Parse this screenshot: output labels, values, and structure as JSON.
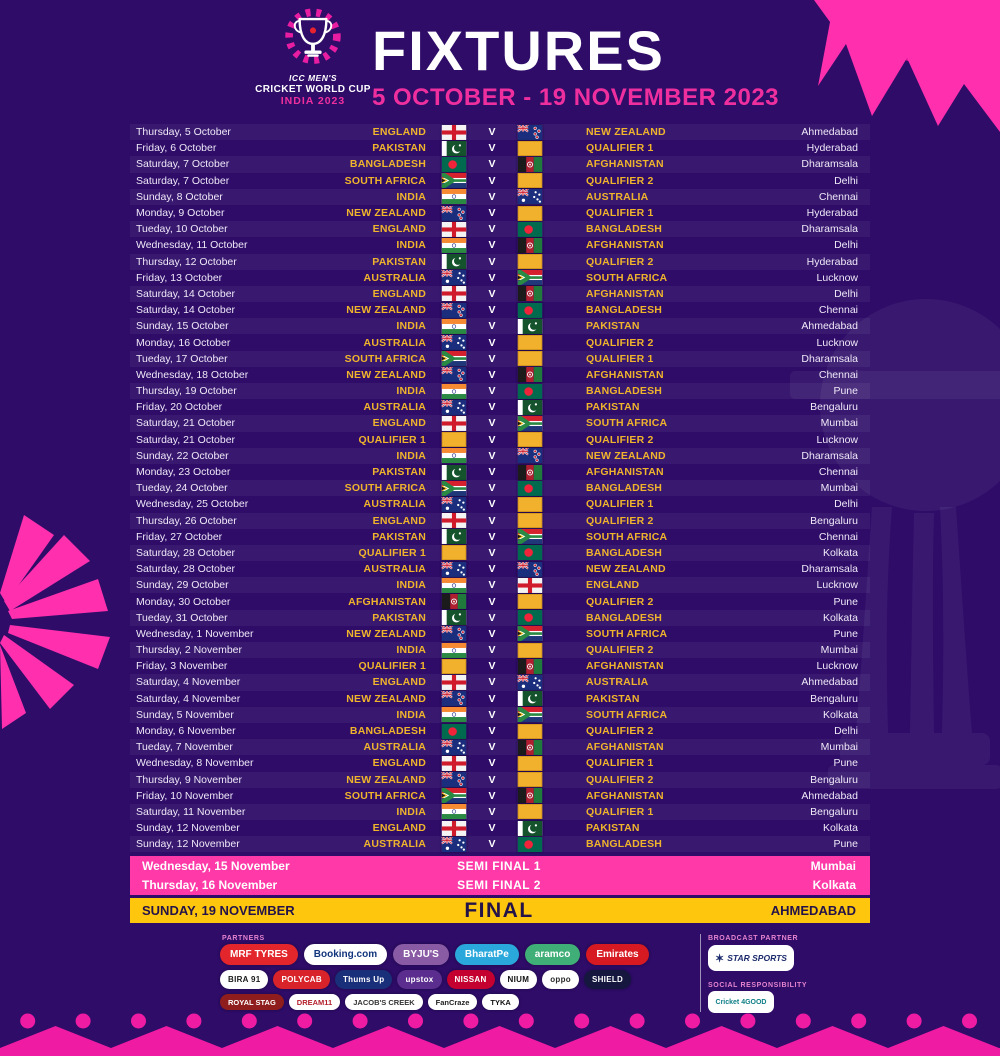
{
  "header": {
    "logo_line1": "ICC MEN'S",
    "logo_line2": "CRICKET WORLD CUP",
    "logo_line3": "INDIA 2023",
    "title": "FIXTURES",
    "subtitle": "5 OCTOBER - 19 NOVEMBER 2023"
  },
  "colors": {
    "background": "#2e0c68",
    "team_gold": "#f0b42c",
    "pink_accent": "#f02f9f",
    "semi_final_bg": "#ff3aa8",
    "final_bg": "#ffc60e",
    "final_text": "#241349"
  },
  "table": {
    "vs_label": "V"
  },
  "flag_map": {
    "ENGLAND": "england-flag",
    "NEW ZEALAND": "new-zealand-flag",
    "PAKISTAN": "pakistan-flag",
    "QUALIFIER 1": "qualifier-flag",
    "QUALIFIER 2": "qualifier-flag",
    "BANGLADESH": "bangladesh-flag",
    "AFGHANISTAN": "afghanistan-flag",
    "SOUTH AFRICA": "south-africa-flag",
    "INDIA": "india-flag",
    "AUSTRALIA": "australia-flag"
  },
  "fixtures": [
    {
      "date": "Thursday, 5 October",
      "team1": "ENGLAND",
      "team2": "NEW ZEALAND",
      "venue": "Ahmedabad"
    },
    {
      "date": "Friday, 6 October",
      "team1": "PAKISTAN",
      "team2": "QUALIFIER 1",
      "venue": "Hyderabad"
    },
    {
      "date": "Saturday, 7 October",
      "team1": "BANGLADESH",
      "team2": "AFGHANISTAN",
      "venue": "Dharamsala"
    },
    {
      "date": "Saturday, 7 October",
      "team1": "SOUTH AFRICA",
      "team2": "QUALIFIER 2",
      "venue": "Delhi"
    },
    {
      "date": "Sunday, 8 October",
      "team1": "INDIA",
      "team2": "AUSTRALIA",
      "venue": "Chennai"
    },
    {
      "date": "Monday, 9 October",
      "team1": "NEW ZEALAND",
      "team2": "QUALIFIER 1",
      "venue": "Hyderabad"
    },
    {
      "date": "Tueday, 10 October",
      "team1": "ENGLAND",
      "team2": "BANGLADESH",
      "venue": "Dharamsala"
    },
    {
      "date": "Wednesday, 11 October",
      "team1": "INDIA",
      "team2": "AFGHANISTAN",
      "venue": "Delhi"
    },
    {
      "date": "Thursday, 12 October",
      "team1": "PAKISTAN",
      "team2": "QUALIFIER 2",
      "venue": "Hyderabad"
    },
    {
      "date": "Friday, 13 October",
      "team1": "AUSTRALIA",
      "team2": "SOUTH AFRICA",
      "venue": "Lucknow"
    },
    {
      "date": "Saturday, 14 October",
      "team1": "ENGLAND",
      "team2": "AFGHANISTAN",
      "venue": "Delhi"
    },
    {
      "date": "Saturday, 14 October",
      "team1": "NEW ZEALAND",
      "team2": "BANGLADESH",
      "venue": "Chennai"
    },
    {
      "date": "Sunday, 15 October",
      "team1": "INDIA",
      "team2": "PAKISTAN",
      "venue": "Ahmedabad"
    },
    {
      "date": "Monday, 16 October",
      "team1": "AUSTRALIA",
      "team2": "QUALIFIER 2",
      "venue": "Lucknow"
    },
    {
      "date": "Tueday, 17 October",
      "team1": "SOUTH AFRICA",
      "team2": "QUALIFIER 1",
      "venue": "Dharamsala"
    },
    {
      "date": "Wednesday, 18 October",
      "team1": "NEW ZEALAND",
      "team2": "AFGHANISTAN",
      "venue": "Chennai"
    },
    {
      "date": "Thursday, 19 October",
      "team1": "INDIA",
      "team2": "BANGLADESH",
      "venue": "Pune"
    },
    {
      "date": "Friday, 20 October",
      "team1": "AUSTRALIA",
      "team2": "PAKISTAN",
      "venue": "Bengaluru"
    },
    {
      "date": "Saturday, 21 October",
      "team1": "ENGLAND",
      "team2": "SOUTH AFRICA",
      "venue": "Mumbai"
    },
    {
      "date": "Saturday, 21 October",
      "team1": "QUALIFIER 1",
      "team2": "QUALIFIER 2",
      "venue": "Lucknow"
    },
    {
      "date": "Sunday, 22 October",
      "team1": "INDIA",
      "team2": "NEW ZEALAND",
      "venue": "Dharamsala"
    },
    {
      "date": "Monday, 23 October",
      "team1": "PAKISTAN",
      "team2": "AFGHANISTAN",
      "venue": "Chennai"
    },
    {
      "date": "Tueday, 24 October",
      "team1": "SOUTH AFRICA",
      "team2": "BANGLADESH",
      "venue": "Mumbai"
    },
    {
      "date": "Wednesday, 25 October",
      "team1": "AUSTRALIA",
      "team2": "QUALIFIER 1",
      "venue": "Delhi"
    },
    {
      "date": "Thursday, 26 October",
      "team1": "ENGLAND",
      "team2": "QUALIFIER 2",
      "venue": "Bengaluru"
    },
    {
      "date": "Friday, 27 October",
      "team1": "PAKISTAN",
      "team2": "SOUTH AFRICA",
      "venue": "Chennai"
    },
    {
      "date": "Saturday, 28 October",
      "team1": "QUALIFIER 1",
      "team2": "BANGLADESH",
      "venue": "Kolkata"
    },
    {
      "date": "Saturday, 28 October",
      "team1": "AUSTRALIA",
      "team2": "NEW ZEALAND",
      "venue": "Dharamsala"
    },
    {
      "date": "Sunday, 29 October",
      "team1": "INDIA",
      "team2": "ENGLAND",
      "venue": "Lucknow"
    },
    {
      "date": "Monday, 30 October",
      "team1": "AFGHANISTAN",
      "team2": "QUALIFIER 2",
      "venue": "Pune"
    },
    {
      "date": "Tueday, 31 October",
      "team1": "PAKISTAN",
      "team2": "BANGLADESH",
      "venue": "Kolkata"
    },
    {
      "date": "Wednesday, 1 November",
      "team1": "NEW ZEALAND",
      "team2": "SOUTH AFRICA",
      "venue": "Pune"
    },
    {
      "date": "Thursday, 2 November",
      "team1": "INDIA",
      "team2": "QUALIFIER 2",
      "venue": "Mumbai"
    },
    {
      "date": "Friday, 3 November",
      "team1": "QUALIFIER 1",
      "team2": "AFGHANISTAN",
      "venue": "Lucknow"
    },
    {
      "date": "Saturday, 4 November",
      "team1": "ENGLAND",
      "team2": "AUSTRALIA",
      "venue": "Ahmedabad"
    },
    {
      "date": "Saturday, 4 November",
      "team1": "NEW ZEALAND",
      "team2": "PAKISTAN",
      "venue": "Bengaluru"
    },
    {
      "date": "Sunday, 5 November",
      "team1": "INDIA",
      "team2": "SOUTH AFRICA",
      "venue": "Kolkata"
    },
    {
      "date": "Monday, 6 November",
      "team1": "BANGLADESH",
      "team2": "QUALIFIER 2",
      "venue": "Delhi"
    },
    {
      "date": "Tueday, 7 November",
      "team1": "AUSTRALIA",
      "team2": "AFGHANISTAN",
      "venue": "Mumbai"
    },
    {
      "date": "Wednesday, 8 November",
      "team1": "ENGLAND",
      "team2": "QUALIFIER 1",
      "venue": "Pune"
    },
    {
      "date": "Thursday, 9 November",
      "team1": "NEW ZEALAND",
      "team2": "QUALIFIER 2",
      "venue": "Bengaluru"
    },
    {
      "date": "Friday, 10 November",
      "team1": "SOUTH AFRICA",
      "team2": "AFGHANISTAN",
      "venue": "Ahmedabad"
    },
    {
      "date": "Saturday, 11 November",
      "team1": "INDIA",
      "team2": "QUALIFIER 1",
      "venue": "Bengaluru"
    },
    {
      "date": "Sunday, 12 November",
      "team1": "ENGLAND",
      "team2": "PAKISTAN",
      "venue": "Kolkata"
    },
    {
      "date": "Sunday, 12 November",
      "team1": "AUSTRALIA",
      "team2": "BANGLADESH",
      "venue": "Pune"
    }
  ],
  "knockouts": [
    {
      "date": "Wednesday, 15 November",
      "label": "SEMI FINAL 1",
      "venue": "Mumbai"
    },
    {
      "date": "Thursday, 16 November",
      "label": "SEMI FINAL 2",
      "venue": "Kolkata"
    },
    {
      "date": "SUNDAY, 19 NOVEMBER",
      "label": "FINAL",
      "venue": "AHMEDABAD"
    }
  ],
  "footer": {
    "partners_label": "PARTNERS",
    "broadcast_label": "BROADCAST PARTNER",
    "social_label": "SOCIAL RESPONSIBILITY",
    "partner_rows": [
      [
        {
          "label": "MRF TYRES",
          "bg": "#e3262c",
          "fg": "#ffffff"
        },
        {
          "label": "Booking.com",
          "bg": "#ffffff",
          "fg": "#11357d"
        },
        {
          "label": "BYJU'S",
          "bg": "#8a5ba5",
          "fg": "#ffffff"
        },
        {
          "label": "BharatPe",
          "bg": "#2aa8dc",
          "fg": "#ffffff"
        },
        {
          "label": "aramco",
          "bg": "#3fae77",
          "fg": "#ffffff"
        },
        {
          "label": "Emirates",
          "bg": "#d71a21",
          "fg": "#ffffff"
        }
      ],
      [
        {
          "label": "BIRA 91",
          "bg": "#ffffff",
          "fg": "#1a1a1a"
        },
        {
          "label": "POLYCAB",
          "bg": "#d8232a",
          "fg": "#ffffff"
        },
        {
          "label": "Thums Up",
          "bg": "#1a2f7a",
          "fg": "#ffffff"
        },
        {
          "label": "upstox",
          "bg": "#5b2d8e",
          "fg": "#ffffff"
        },
        {
          "label": "NISSAN",
          "bg": "#c3002f",
          "fg": "#ffffff"
        },
        {
          "label": "NIUM",
          "bg": "#ffffff",
          "fg": "#111111"
        },
        {
          "label": "oppo",
          "bg": "#ffffff",
          "fg": "#2a2a2a"
        },
        {
          "label": "SHIELD",
          "bg": "#15173f",
          "fg": "#ffffff"
        }
      ],
      [
        {
          "label": "ROYAL STAG",
          "bg": "#8f1d1d",
          "fg": "#ffffff"
        },
        {
          "label": "DREAM11",
          "bg": "#ffffff",
          "fg": "#b3202c"
        },
        {
          "label": "JACOB'S CREEK",
          "bg": "#ffffff",
          "fg": "#333333"
        },
        {
          "label": "FanCraze",
          "bg": "#ffffff",
          "fg": "#222222"
        },
        {
          "label": "TYKA",
          "bg": "#ffffff",
          "fg": "#111111"
        }
      ]
    ],
    "broadcast_logo": {
      "label": "STAR SPORTS"
    },
    "social_logo": {
      "label": "Cricket 4GOOD"
    }
  }
}
